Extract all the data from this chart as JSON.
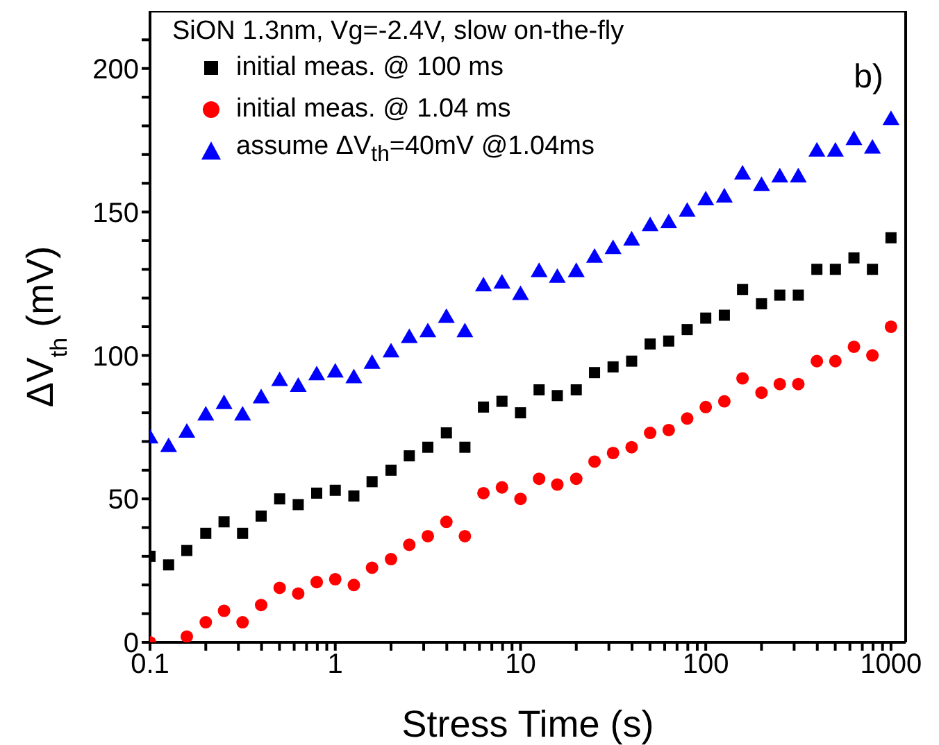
{
  "chart_data": {
    "type": "scatter",
    "xlabel": "Stress Time (s)",
    "ylabel": "ΔV$_{th}$ (mV)",
    "legend_title": "SiON 1.3nm, Vg=-2.4V, slow on-the-fly",
    "annotations": [
      "b)"
    ],
    "x": [
      0.1,
      0.126,
      0.158,
      0.2,
      0.251,
      0.316,
      0.398,
      0.501,
      0.631,
      0.794,
      1,
      1.26,
      1.58,
      2,
      2.51,
      3.16,
      3.98,
      5.01,
      6.31,
      7.94,
      10,
      12.6,
      15.8,
      20,
      25.1,
      31.6,
      39.8,
      50.1,
      63.1,
      79.4,
      100,
      126,
      158,
      200,
      251,
      316,
      398,
      501,
      631,
      794,
      1000
    ],
    "series": [
      {
        "name": "initial meas. @ 100 ms",
        "color": "#000000",
        "marker": "square",
        "values": [
          30,
          27,
          32,
          38,
          42,
          38,
          44,
          50,
          48,
          52,
          53,
          51,
          56,
          60,
          65,
          68,
          73,
          68,
          82,
          84,
          80,
          88,
          86,
          88,
          94,
          96,
          98,
          104,
          105,
          109,
          113,
          114,
          123,
          118,
          121,
          121,
          130,
          130,
          134,
          130,
          141
        ]
      },
      {
        "name": "initial meas. @ 1.04 ms",
        "color": "#ff0000",
        "marker": "circle",
        "values": [
          0,
          null,
          2,
          7,
          11,
          7,
          13,
          19,
          17,
          21,
          22,
          20,
          26,
          29,
          34,
          37,
          42,
          37,
          52,
          54,
          50,
          57,
          55,
          57,
          63,
          66,
          68,
          73,
          74,
          78,
          82,
          84,
          92,
          87,
          90,
          90,
          98,
          98,
          103,
          100,
          110
        ]
      },
      {
        "name": "assume ΔV$_{th}$=40mV @1.04ms",
        "color": "#0000ff",
        "marker": "triangle",
        "values": [
          71,
          68,
          73,
          79,
          83,
          79,
          85,
          91,
          89,
          93,
          94,
          92,
          97,
          101,
          106,
          108,
          113,
          108,
          124,
          125,
          121,
          129,
          127,
          129,
          134,
          137,
          140,
          145,
          146,
          150,
          154,
          155,
          163,
          159,
          162,
          162,
          171,
          171,
          175,
          172,
          182
        ]
      }
    ],
    "log": "x",
    "xlim": [
      0.1,
      1200
    ],
    "xticks": [
      0.1,
      {
        "value": 0.2,
        "label": null
      },
      {
        "value": 0.3,
        "label": null
      },
      {
        "value": 0.4,
        "label": null
      },
      {
        "value": 0.5,
        "label": null
      },
      {
        "value": 0.6,
        "label": null
      },
      {
        "value": 0.7,
        "label": null
      },
      {
        "value": 0.8,
        "label": null
      },
      {
        "value": 0.9,
        "label": null
      },
      1,
      {
        "value": 2,
        "label": null
      },
      {
        "value": 3,
        "label": null
      },
      {
        "value": 4,
        "label": null
      },
      {
        "value": 5,
        "label": null
      },
      {
        "value": 6,
        "label": null
      },
      {
        "value": 7,
        "label": null
      },
      {
        "value": 8,
        "label": null
      },
      {
        "value": 9,
        "label": null
      },
      10,
      {
        "value": 20,
        "label": null
      },
      {
        "value": 30,
        "label": null
      },
      {
        "value": 40,
        "label": null
      },
      {
        "value": 50,
        "label": null
      },
      {
        "value": 60,
        "label": null
      },
      {
        "value": 70,
        "label": null
      },
      {
        "value": 80,
        "label": null
      },
      {
        "value": 90,
        "label": null
      },
      100,
      {
        "value": 200,
        "label": null
      },
      {
        "value": 300,
        "label": null
      },
      {
        "value": 400,
        "label": null
      },
      {
        "value": 500,
        "label": null
      },
      {
        "value": 600,
        "label": null
      },
      {
        "value": 700,
        "label": null
      },
      {
        "value": 800,
        "label": null
      },
      {
        "value": 900,
        "label": null
      },
      1000
    ],
    "ylim": [
      0,
      220
    ],
    "yticks": [
      0,
      {
        "value": 10,
        "label": null
      },
      {
        "value": 20,
        "label": null
      },
      {
        "value": 30,
        "label": null
      },
      {
        "value": 40,
        "label": null
      },
      50,
      {
        "value": 60,
        "label": null
      },
      {
        "value": 70,
        "label": null
      },
      {
        "value": 80,
        "label": null
      },
      {
        "value": 90,
        "label": null
      },
      100,
      {
        "value": 110,
        "label": null
      },
      {
        "value": 120,
        "label": null
      },
      {
        "value": 130,
        "label": null
      },
      {
        "value": 140,
        "label": null
      },
      150,
      {
        "value": 160,
        "label": null
      },
      {
        "value": 170,
        "label": null
      },
      {
        "value": 180,
        "label": null
      },
      {
        "value": 190,
        "label": null
      },
      200,
      {
        "value": 210,
        "label": null
      }
    ],
    "legend": "top left"
  }
}
